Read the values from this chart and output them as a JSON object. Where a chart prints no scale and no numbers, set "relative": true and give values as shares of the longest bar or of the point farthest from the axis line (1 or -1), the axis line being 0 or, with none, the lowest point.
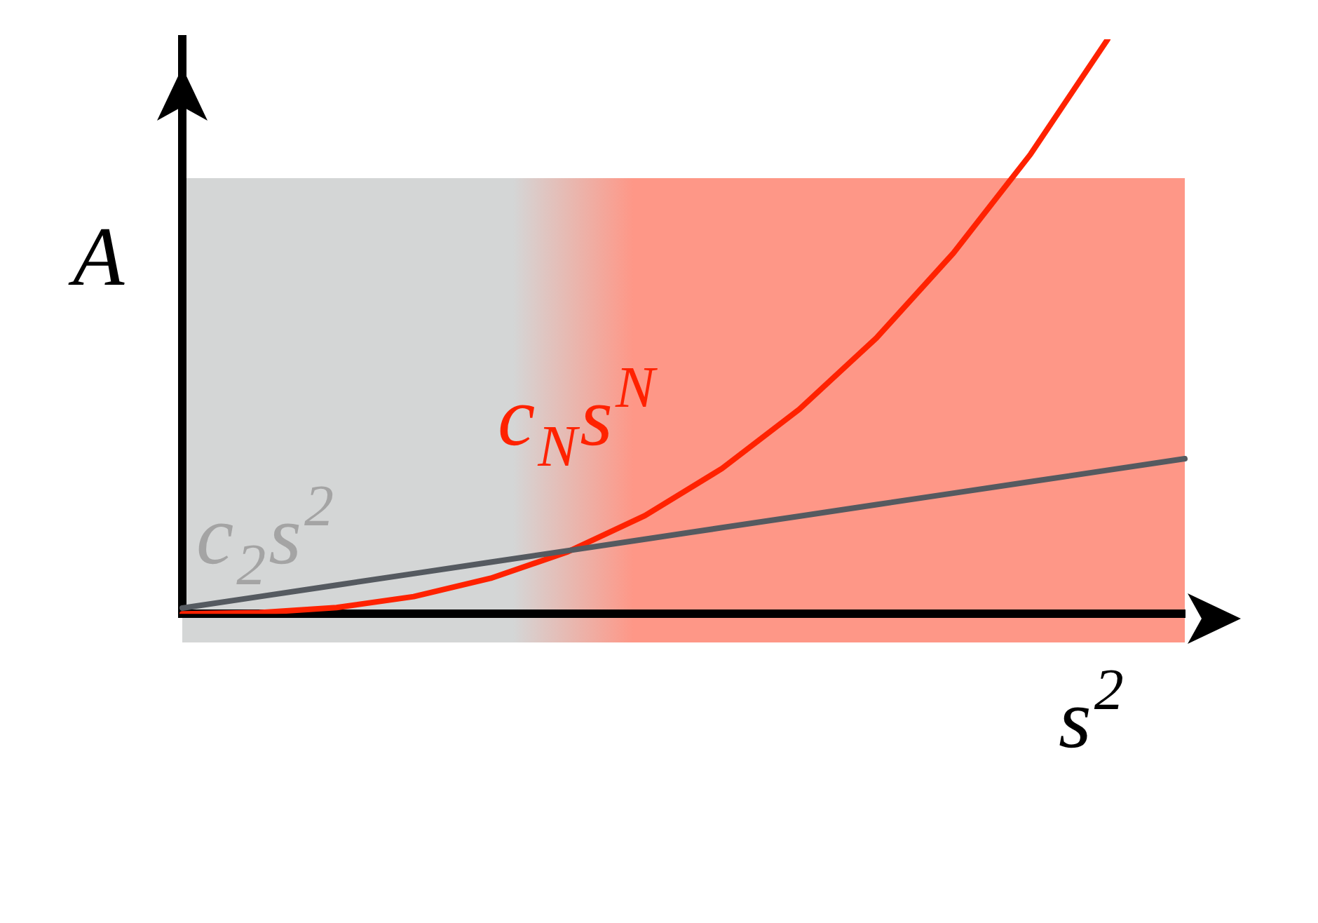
{
  "chart_data": {
    "type": "line",
    "relative": true,
    "xlabel": "s$^{2}$",
    "ylabel": "A",
    "categories": [
      null,
      null,
      null,
      null,
      null,
      null,
      null,
      null,
      null,
      null,
      null,
      null,
      null,
      null
    ],
    "series": [
      {
        "name": "c$_{2}$s$^{2}$",
        "color": "#555a60",
        "values": [
          0.01,
          0.03,
          0.05,
          0.07,
          0.09,
          0.11,
          0.13,
          0.15,
          0.17,
          0.19,
          0.21,
          0.23,
          0.25,
          0.27
        ]
      },
      {
        "name": "c$_{N}$s$^{N}$",
        "color": "#ff2200",
        "values": [
          0.0,
          0.002,
          0.011,
          0.03,
          0.062,
          0.108,
          0.171,
          0.253,
          0.356,
          0.48,
          0.628,
          0.8,
          1.0,
          null
        ]
      }
    ],
    "legend": false,
    "grid": false,
    "marker": "none",
    "line_style": "solid"
  }
}
